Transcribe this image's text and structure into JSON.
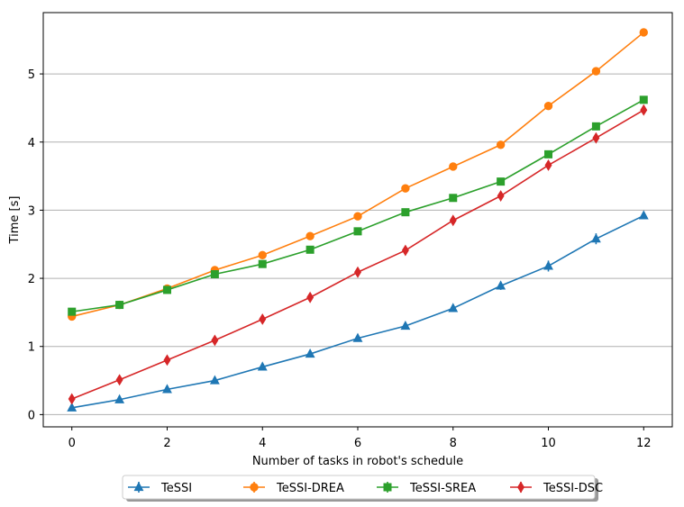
{
  "chart_data": {
    "type": "line",
    "title": "",
    "xlabel": "Number of tasks in robot's schedule",
    "ylabel": "Time [s]",
    "x": [
      0,
      1,
      2,
      3,
      4,
      5,
      6,
      7,
      8,
      9,
      10,
      11,
      12
    ],
    "xlim": [
      -0.6,
      12.6
    ],
    "ylim": [
      -0.18,
      5.9
    ],
    "xticks": [
      0,
      2,
      4,
      6,
      8,
      10,
      12
    ],
    "yticks": [
      0,
      1,
      2,
      3,
      4,
      5
    ],
    "grid": "horizontal",
    "legend_position": "bottom-center",
    "series": [
      {
        "name": "TeSSI",
        "color": "#1f77b4",
        "marker": "triangle",
        "values": [
          0.1,
          0.22,
          0.37,
          0.5,
          0.7,
          0.89,
          1.12,
          1.3,
          1.56,
          1.89,
          2.18,
          2.58,
          2.92
        ],
        "errors": [
          0.02,
          0.02,
          0.02,
          0.02,
          0.03,
          0.03,
          0.03,
          0.04,
          0.05,
          0.06,
          0.08,
          0.08,
          0.04
        ]
      },
      {
        "name": "TeSSI-DREA",
        "color": "#ff7f0e",
        "marker": "circle",
        "values": [
          1.44,
          1.61,
          1.85,
          2.12,
          2.34,
          2.62,
          2.91,
          3.32,
          3.64,
          3.96,
          4.53,
          5.04,
          5.61
        ],
        "errors": [
          0.02,
          0.02,
          0.02,
          0.02,
          0.02,
          0.02,
          0.03,
          0.03,
          0.03,
          0.03,
          0.03,
          0.05,
          0.03
        ]
      },
      {
        "name": "TeSSI-SREA",
        "color": "#2ca02c",
        "marker": "square",
        "values": [
          1.51,
          1.61,
          1.83,
          2.06,
          2.21,
          2.42,
          2.69,
          2.97,
          3.18,
          3.42,
          3.82,
          4.23,
          4.62
        ],
        "errors": [
          0.02,
          0.02,
          0.02,
          0.02,
          0.02,
          0.02,
          0.02,
          0.03,
          0.03,
          0.03,
          0.03,
          0.03,
          0.03
        ]
      },
      {
        "name": "TeSSI-DSC",
        "color": "#d62728",
        "marker": "diamond",
        "values": [
          0.23,
          0.51,
          0.8,
          1.09,
          1.4,
          1.72,
          2.09,
          2.41,
          2.85,
          3.21,
          3.66,
          4.06,
          4.47
        ],
        "errors": [
          0.02,
          0.02,
          0.02,
          0.02,
          0.02,
          0.02,
          0.02,
          0.03,
          0.03,
          0.03,
          0.04,
          0.05,
          0.06
        ]
      }
    ]
  }
}
